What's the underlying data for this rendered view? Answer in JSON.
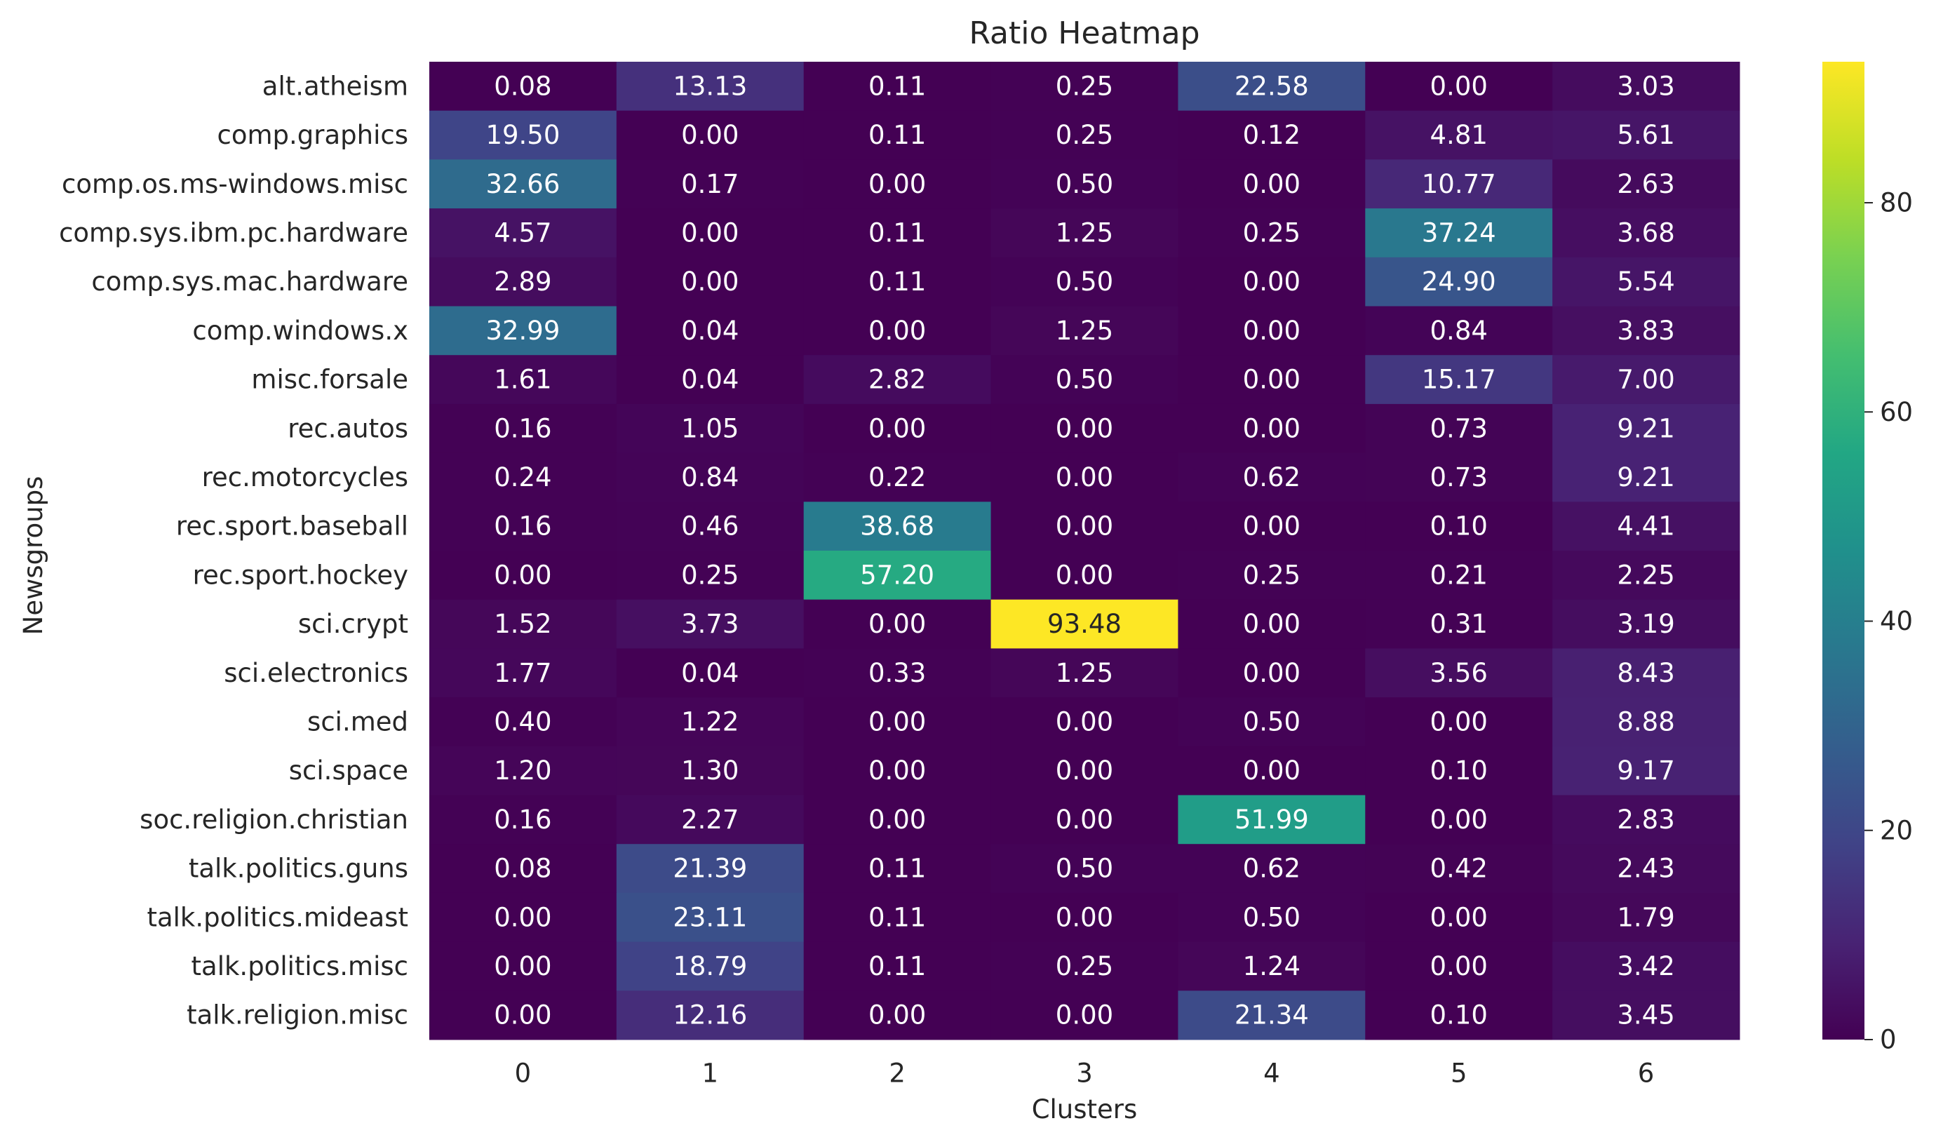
{
  "chart_data": {
    "type": "heatmap",
    "title": "Ratio Heatmap",
    "xlabel": "Clusters",
    "ylabel": "Newsgroups",
    "colormap": "viridis",
    "vmin": 0,
    "vmax": 93.48,
    "columns": [
      "0",
      "1",
      "2",
      "3",
      "4",
      "5",
      "6"
    ],
    "rows": [
      "alt.atheism",
      "comp.graphics",
      "comp.os.ms-windows.misc",
      "comp.sys.ibm.pc.hardware",
      "comp.sys.mac.hardware",
      "comp.windows.x",
      "misc.forsale",
      "rec.autos",
      "rec.motorcycles",
      "rec.sport.baseball",
      "rec.sport.hockey",
      "sci.crypt",
      "sci.electronics",
      "sci.med",
      "sci.space",
      "soc.religion.christian",
      "talk.politics.guns",
      "talk.politics.mideast",
      "talk.politics.misc",
      "talk.religion.misc"
    ],
    "values": [
      [
        0.08,
        13.13,
        0.11,
        0.25,
        22.58,
        0.0,
        3.03
      ],
      [
        19.5,
        0.0,
        0.11,
        0.25,
        0.12,
        4.81,
        5.61
      ],
      [
        32.66,
        0.17,
        0.0,
        0.5,
        0.0,
        10.77,
        2.63
      ],
      [
        4.57,
        0.0,
        0.11,
        1.25,
        0.25,
        37.24,
        3.68
      ],
      [
        2.89,
        0.0,
        0.11,
        0.5,
        0.0,
        24.9,
        5.54
      ],
      [
        32.99,
        0.04,
        0.0,
        1.25,
        0.0,
        0.84,
        3.83
      ],
      [
        1.61,
        0.04,
        2.82,
        0.5,
        0.0,
        15.17,
        7.0
      ],
      [
        0.16,
        1.05,
        0.0,
        0.0,
        0.0,
        0.73,
        9.21
      ],
      [
        0.24,
        0.84,
        0.22,
        0.0,
        0.62,
        0.73,
        9.21
      ],
      [
        0.16,
        0.46,
        38.68,
        0.0,
        0.0,
        0.1,
        4.41
      ],
      [
        0.0,
        0.25,
        57.2,
        0.0,
        0.25,
        0.21,
        2.25
      ],
      [
        1.52,
        3.73,
        0.0,
        93.48,
        0.0,
        0.31,
        3.19
      ],
      [
        1.77,
        0.04,
        0.33,
        1.25,
        0.0,
        3.56,
        8.43
      ],
      [
        0.4,
        1.22,
        0.0,
        0.0,
        0.5,
        0.0,
        8.88
      ],
      [
        1.2,
        1.3,
        0.0,
        0.0,
        0.0,
        0.1,
        9.17
      ],
      [
        0.16,
        2.27,
        0.0,
        0.0,
        51.99,
        0.0,
        2.83
      ],
      [
        0.08,
        21.39,
        0.11,
        0.5,
        0.62,
        0.42,
        2.43
      ],
      [
        0.0,
        23.11,
        0.11,
        0.0,
        0.5,
        0.0,
        1.79
      ],
      [
        0.0,
        18.79,
        0.11,
        0.25,
        1.24,
        0.0,
        3.42
      ],
      [
        0.0,
        12.16,
        0.0,
        0.0,
        21.34,
        0.1,
        3.45
      ]
    ],
    "colorbar_ticks": [
      0,
      20,
      40,
      60,
      80
    ]
  }
}
